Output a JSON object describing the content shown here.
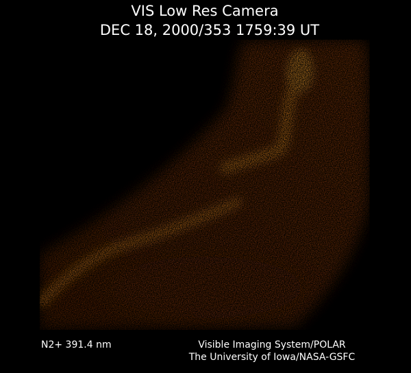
{
  "header": {
    "title": "VIS Low Res Camera",
    "timestamp": "DEC 18, 2000/353 1759:39 UT"
  },
  "footer": {
    "wavelength": "N2+ 391.4 nm",
    "credit_lines": [
      "Visible Imaging System/POLAR",
      "The University of Iowa/NASA-GSFC"
    ]
  }
}
